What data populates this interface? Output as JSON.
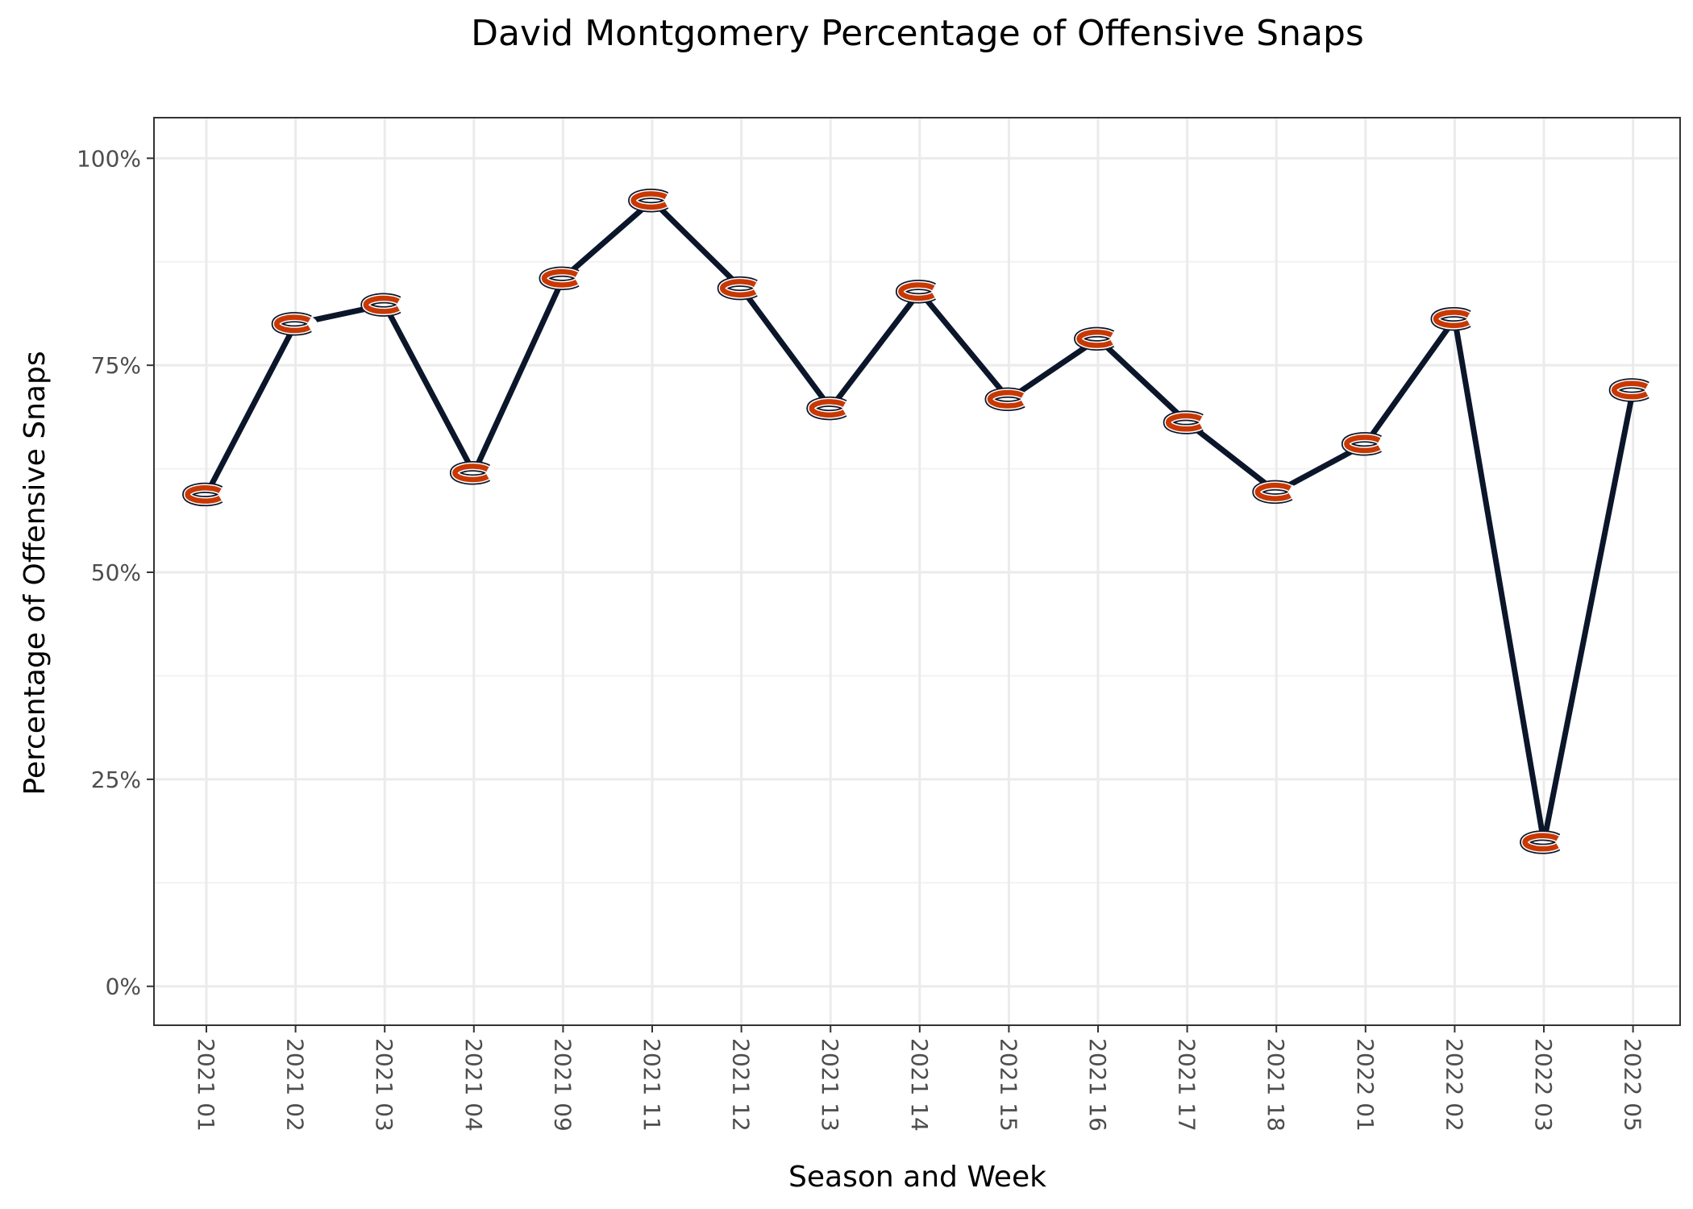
{
  "chart_data": {
    "type": "line",
    "title": "David Montgomery Percentage of Offensive Snaps",
    "xlabel": "Season and Week",
    "ylabel": "Percentage of Offensive Snaps",
    "categories": [
      "2021 01",
      "2021 02",
      "2021 03",
      "2021 04",
      "2021 09",
      "2021 11",
      "2021 12",
      "2021 13",
      "2021 14",
      "2021 15",
      "2021 16",
      "2021 17",
      "2021 18",
      "2022 01",
      "2022 02",
      "2022 03",
      "2022 05"
    ],
    "values": [
      59.4,
      80.0,
      82.3,
      62.0,
      85.5,
      94.9,
      84.3,
      69.8,
      83.9,
      70.9,
      78.2,
      68.1,
      59.7,
      65.5,
      80.6,
      17.4,
      72.0
    ],
    "ylim": [
      -4.7,
      104.9
    ],
    "y_ticks": [
      0,
      25,
      50,
      75,
      100
    ],
    "y_tick_labels": [
      "0%",
      "25%",
      "50%",
      "75%",
      "100%"
    ],
    "grid": true,
    "legend": "none",
    "marker": "chicago-bears-logo",
    "colors": {
      "line": "#0B162A",
      "logo_orange": "#C83803",
      "logo_navy": "#0B162A"
    }
  }
}
